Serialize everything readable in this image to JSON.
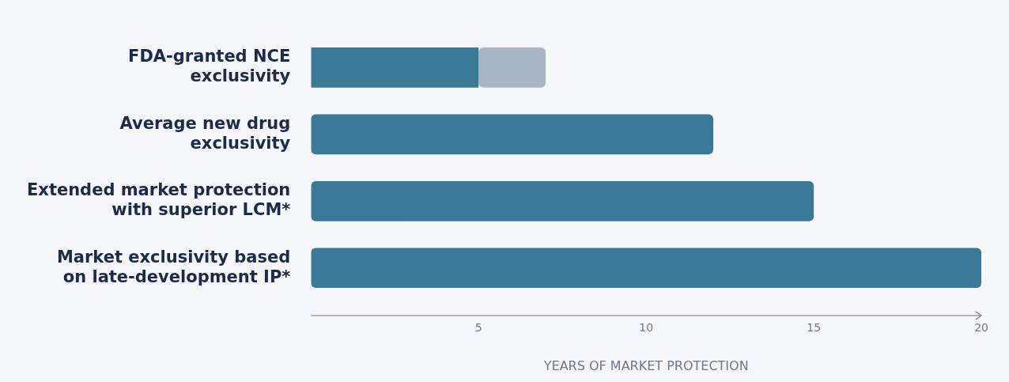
{
  "chart_data": {
    "type": "bar",
    "orientation": "horizontal",
    "stacked": true,
    "categories": [
      "FDA-granted NCE exclusivity",
      "Average new drug exclusivity",
      "Extended market protection with superior LCM*",
      "Market exclusivity based on late-development IP*"
    ],
    "series": [
      {
        "color": "#3a7a96",
        "values": [
          5,
          12,
          15,
          20
        ]
      },
      {
        "color": "#a9b4c4",
        "values": [
          2,
          0,
          0,
          0
        ]
      }
    ],
    "xlabel": "YEARS OF MARKET PROTECTION",
    "xlim": [
      0,
      20
    ],
    "xticks": [
      5,
      10,
      15,
      20
    ],
    "grid": false,
    "legend": false
  }
}
